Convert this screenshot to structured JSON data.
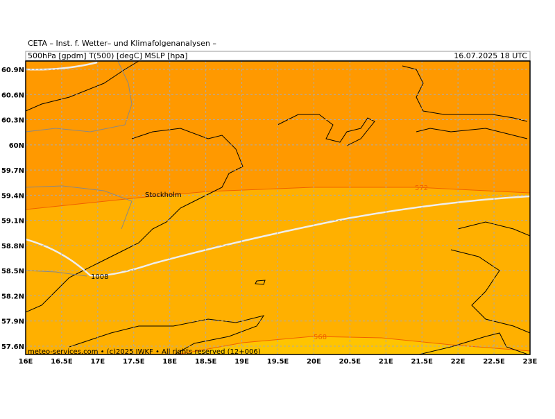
{
  "header": {
    "title": "CETA – Inst. f. Wetter– und Klimafolgenanalysen –",
    "fields": "500hPa [gpdm] T(500) [degC] MSLP [hpa]",
    "valid_time": "16.07.2025 18 UTC"
  },
  "map": {
    "lon_ticks": [
      {
        "value": 16,
        "label": "16E"
      },
      {
        "value": 16.5,
        "label": "16.5E"
      },
      {
        "value": 17,
        "label": "17E"
      },
      {
        "value": 17.5,
        "label": "17.5E"
      },
      {
        "value": 18,
        "label": "18E"
      },
      {
        "value": 18.5,
        "label": "18.5E"
      },
      {
        "value": 19,
        "label": "19E"
      },
      {
        "value": 19.5,
        "label": "19.5E"
      },
      {
        "value": 20,
        "label": "20E"
      },
      {
        "value": 20.5,
        "label": "20.5E"
      },
      {
        "value": 21,
        "label": "21E"
      },
      {
        "value": 21.5,
        "label": "21.5E"
      },
      {
        "value": 22,
        "label": "22E"
      },
      {
        "value": 22.5,
        "label": "22.5E"
      },
      {
        "value": 23,
        "label": "23E"
      }
    ],
    "lat_ticks": [
      {
        "value": 60.9,
        "label": "60.9N"
      },
      {
        "value": 60.6,
        "label": "60.6N"
      },
      {
        "value": 60.3,
        "label": "60.3N"
      },
      {
        "value": 60,
        "label": "60N"
      },
      {
        "value": 59.7,
        "label": "59.7N"
      },
      {
        "value": 59.4,
        "label": "59.4N"
      },
      {
        "value": 59.1,
        "label": "59.1N"
      },
      {
        "value": 58.8,
        "label": "58.8N"
      },
      {
        "value": 58.5,
        "label": "58.5N"
      },
      {
        "value": 58.2,
        "label": "58.2N"
      },
      {
        "value": 57.9,
        "label": "57.9N"
      },
      {
        "value": 57.6,
        "label": "57.6N"
      }
    ],
    "city": "Stockholm",
    "contour_labels": [
      "572",
      "568"
    ],
    "isobar_label": "1008"
  },
  "footer": "meteo-services.com • (c)2025 IWKF • All rights reserved (12+006)"
}
